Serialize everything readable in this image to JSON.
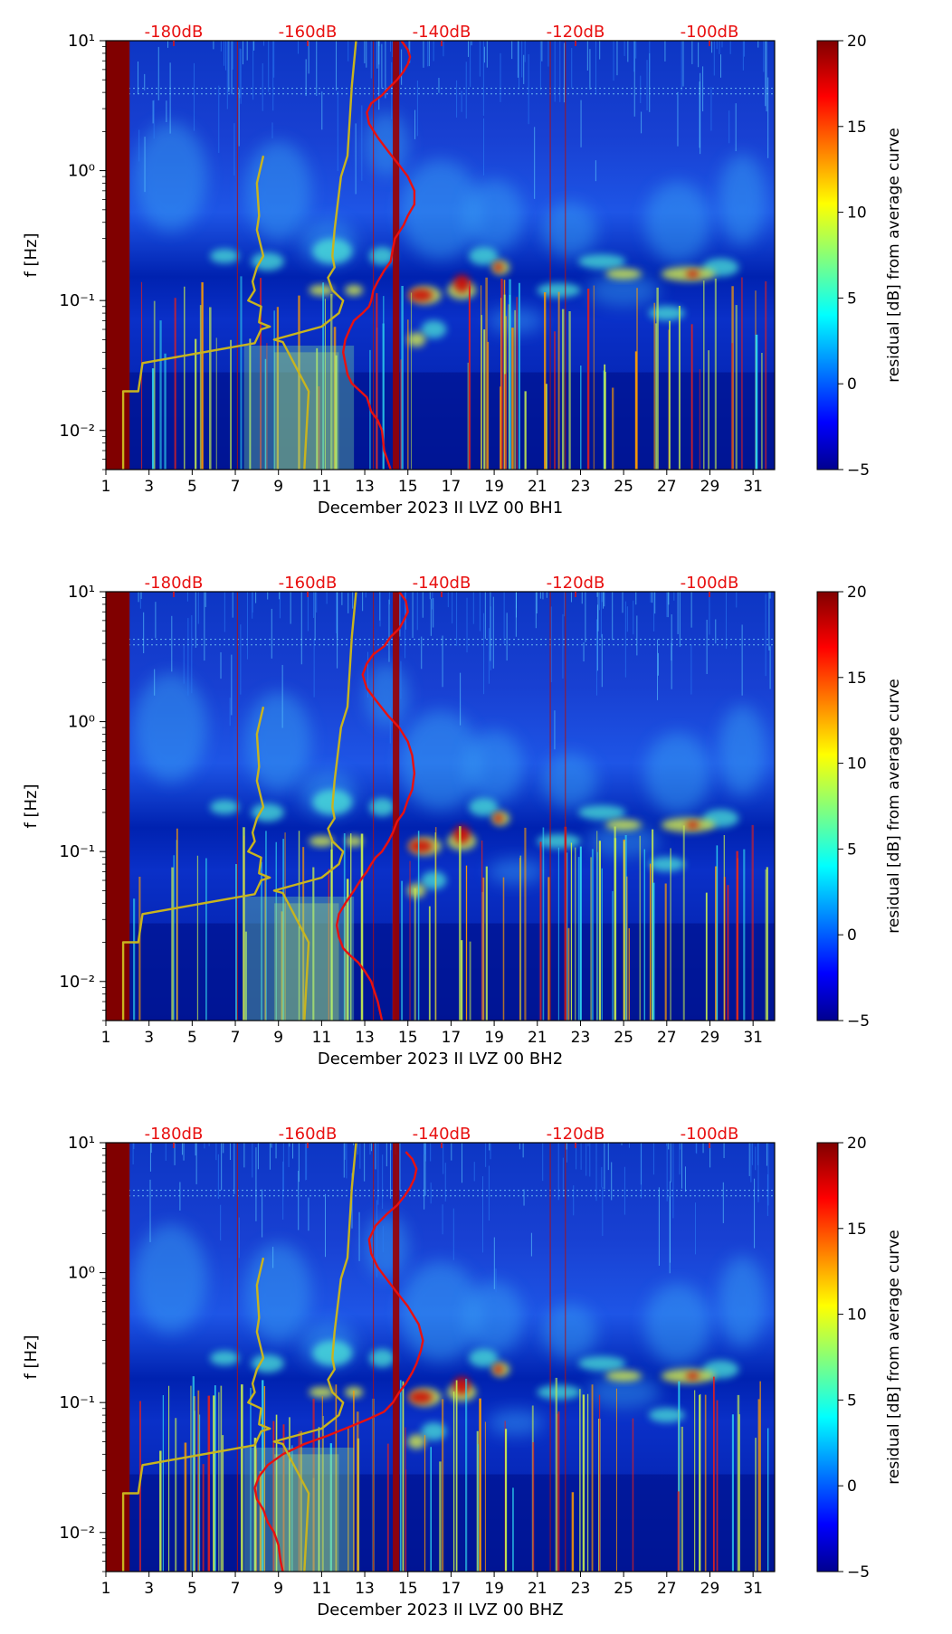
{
  "chart_data": [
    {
      "type": "heatmap",
      "title": "",
      "xlabel": "December 2023 II LVZ 00 BH1",
      "ylabel": "f [Hz]",
      "xticks": [
        "1",
        "3",
        "5",
        "7",
        "9",
        "11",
        "13",
        "15",
        "17",
        "19",
        "21",
        "23",
        "25",
        "27",
        "29",
        "31"
      ],
      "xlim": [
        1,
        32
      ],
      "ylim": [
        0.005,
        10
      ],
      "yscale": "log",
      "yticks": [
        "10⁻²",
        "10⁻¹",
        "10⁰",
        "10¹"
      ],
      "top_labels": [
        "-180dB",
        "-160dB",
        "-140dB",
        "-120dB",
        "-100dB"
      ],
      "colorbar": {
        "label": "residual [dB] from average curve",
        "min": -5,
        "max": 20,
        "ticks": [
          "−5",
          "0",
          "5",
          "10",
          "15",
          "20"
        ]
      },
      "series": [
        {
          "name": "noise model (yellow)",
          "x": [
            1.8,
            1.8,
            2.5,
            2.7,
            7.9,
            8.2,
            8.6,
            8.1,
            8.2,
            7.6,
            7.9,
            7.8,
            8.0,
            8.3,
            8.0,
            8.1,
            8.0,
            8.3
          ],
          "y": [
            0.005,
            0.02,
            0.02,
            0.033,
            0.047,
            0.06,
            0.063,
            0.068,
            0.09,
            0.1,
            0.12,
            0.14,
            0.18,
            0.22,
            0.35,
            0.45,
            0.8,
            1.3
          ]
        },
        {
          "name": "average PSD (red)",
          "x": [
            14.2,
            13.9,
            13.8,
            13.6,
            13.3,
            13.2,
            13.1,
            12.8,
            12.4,
            12.2,
            12.1,
            12.0,
            12.1,
            12.3,
            12.5,
            12.9,
            13.2,
            13.3,
            13.4,
            13.6,
            13.9,
            14.2,
            14.3,
            14.4,
            14.8,
            15.0,
            15.3,
            15.3,
            15.0,
            14.6,
            14.1,
            13.6,
            13.2,
            13.1,
            13.3,
            13.8,
            14.1,
            14.5,
            14.8,
            15.0,
            15.1,
            15.0,
            14.7
          ],
          "y": [
            0.005,
            0.007,
            0.01,
            0.012,
            0.014,
            0.016,
            0.018,
            0.02,
            0.023,
            0.027,
            0.033,
            0.04,
            0.05,
            0.06,
            0.07,
            0.08,
            0.09,
            0.1,
            0.12,
            0.14,
            0.17,
            0.2,
            0.25,
            0.3,
            0.38,
            0.45,
            0.55,
            0.7,
            0.9,
            1.1,
            1.4,
            1.8,
            2.3,
            2.8,
            3.3,
            3.8,
            4.3,
            5.0,
            5.8,
            6.6,
            7.5,
            8.5,
            10
          ]
        },
        {
          "name": "noise model high (yellow)",
          "x": [
            10.2,
            10.4,
            9.2,
            8.8,
            11.0,
            11.8,
            12.0,
            11.5,
            11.3,
            11.6,
            11.5,
            11.6,
            11.9,
            12.2,
            12.4,
            12.6
          ],
          "y": [
            0.005,
            0.02,
            0.048,
            0.05,
            0.063,
            0.08,
            0.1,
            0.12,
            0.15,
            0.18,
            0.22,
            0.35,
            0.9,
            1.3,
            4.5,
            10
          ]
        }
      ]
    },
    {
      "type": "heatmap",
      "title": "",
      "xlabel": "December 2023 II LVZ 00 BH2",
      "ylabel": "f [Hz]",
      "xticks": [
        "1",
        "3",
        "5",
        "7",
        "9",
        "11",
        "13",
        "15",
        "17",
        "19",
        "21",
        "23",
        "25",
        "27",
        "29",
        "31"
      ],
      "xlim": [
        1,
        32
      ],
      "ylim": [
        0.005,
        10
      ],
      "yscale": "log",
      "yticks": [
        "10⁻²",
        "10⁻¹",
        "10⁰",
        "10¹"
      ],
      "top_labels": [
        "-180dB",
        "-160dB",
        "-140dB",
        "-120dB",
        "-100dB"
      ],
      "colorbar": {
        "label": "residual [dB] from average curve",
        "min": -5,
        "max": 20,
        "ticks": [
          "−5",
          "0",
          "5",
          "10",
          "15",
          "20"
        ]
      },
      "series": [
        {
          "name": "noise model (yellow)",
          "x": [
            1.8,
            1.8,
            2.5,
            2.7,
            7.9,
            8.2,
            8.6,
            8.1,
            8.2,
            7.6,
            7.9,
            7.8,
            8.0,
            8.3,
            8.0,
            8.1,
            8.0,
            8.3
          ],
          "y": [
            0.005,
            0.02,
            0.02,
            0.033,
            0.047,
            0.06,
            0.063,
            0.068,
            0.09,
            0.1,
            0.12,
            0.14,
            0.18,
            0.22,
            0.35,
            0.45,
            0.8,
            1.3
          ]
        },
        {
          "name": "average PSD (red)",
          "x": [
            13.8,
            13.6,
            13.3,
            13.0,
            12.7,
            12.3,
            12.0,
            11.8,
            11.7,
            11.8,
            12.1,
            12.5,
            12.8,
            13.1,
            13.3,
            13.5,
            13.8,
            14.1,
            14.3,
            14.5,
            14.8,
            15.0,
            15.2,
            15.3,
            15.2,
            15.0,
            14.6,
            14.1,
            13.6,
            13.1,
            12.9,
            13.1,
            13.4,
            13.9,
            14.2,
            14.6,
            14.8,
            15.0,
            14.9,
            14.6
          ],
          "y": [
            0.005,
            0.007,
            0.01,
            0.012,
            0.014,
            0.016,
            0.018,
            0.022,
            0.027,
            0.033,
            0.04,
            0.05,
            0.06,
            0.07,
            0.08,
            0.09,
            0.1,
            0.12,
            0.14,
            0.17,
            0.2,
            0.25,
            0.3,
            0.4,
            0.55,
            0.7,
            0.9,
            1.1,
            1.4,
            1.8,
            2.3,
            2.8,
            3.3,
            3.8,
            4.5,
            5.2,
            6.0,
            7.0,
            8.5,
            10
          ]
        },
        {
          "name": "noise model high (yellow)",
          "x": [
            10.2,
            10.4,
            9.2,
            8.8,
            11.0,
            11.8,
            12.0,
            11.5,
            11.3,
            11.6,
            11.5,
            11.6,
            11.9,
            12.2,
            12.4,
            12.6
          ],
          "y": [
            0.005,
            0.02,
            0.048,
            0.05,
            0.063,
            0.08,
            0.1,
            0.12,
            0.15,
            0.18,
            0.22,
            0.35,
            0.9,
            1.3,
            4.5,
            10
          ]
        }
      ]
    },
    {
      "type": "heatmap",
      "title": "",
      "xlabel": "December 2023 II LVZ 00 BHZ",
      "ylabel": "f [Hz]",
      "xticks": [
        "1",
        "3",
        "5",
        "7",
        "9",
        "11",
        "13",
        "15",
        "17",
        "19",
        "21",
        "23",
        "25",
        "27",
        "29",
        "31"
      ],
      "xlim": [
        1,
        32
      ],
      "ylim": [
        0.005,
        10
      ],
      "yscale": "log",
      "yticks": [
        "10⁻²",
        "10⁻¹",
        "10⁰",
        "10¹"
      ],
      "top_labels": [
        "-180dB",
        "-160dB",
        "-140dB",
        "-120dB",
        "-100dB"
      ],
      "colorbar": {
        "label": "residual [dB] from average curve",
        "min": -5,
        "max": 20,
        "ticks": [
          "−5",
          "0",
          "5",
          "10",
          "15",
          "20"
        ]
      },
      "series": [
        {
          "name": "noise model (yellow)",
          "x": [
            1.8,
            1.8,
            2.5,
            2.7,
            7.9,
            8.2,
            8.6,
            8.1,
            8.2,
            7.6,
            7.9,
            7.8,
            8.0,
            8.3,
            8.0,
            8.1,
            8.0,
            8.3
          ],
          "y": [
            0.005,
            0.02,
            0.02,
            0.033,
            0.047,
            0.06,
            0.063,
            0.068,
            0.09,
            0.1,
            0.12,
            0.14,
            0.18,
            0.22,
            0.35,
            0.45,
            0.8,
            1.3
          ]
        },
        {
          "name": "average PSD (red)",
          "x": [
            9.2,
            9.1,
            9.0,
            8.8,
            8.5,
            8.3,
            8.0,
            7.9,
            8.1,
            8.5,
            9.2,
            10.2,
            11.2,
            12.3,
            13.2,
            13.9,
            14.3,
            14.6,
            14.9,
            15.2,
            15.4,
            15.6,
            15.7,
            15.5,
            15.0,
            14.5,
            14.0,
            13.6,
            13.3,
            13.2,
            13.5,
            14.0,
            14.5,
            14.8,
            15.1,
            15.3,
            15.4,
            15.2,
            14.9
          ],
          "y": [
            0.005,
            0.006,
            0.008,
            0.01,
            0.012,
            0.015,
            0.018,
            0.022,
            0.027,
            0.033,
            0.04,
            0.048,
            0.055,
            0.065,
            0.075,
            0.085,
            0.1,
            0.12,
            0.14,
            0.17,
            0.2,
            0.25,
            0.3,
            0.4,
            0.55,
            0.7,
            0.9,
            1.1,
            1.4,
            1.8,
            2.3,
            2.8,
            3.3,
            3.8,
            4.5,
            5.3,
            6.3,
            7.5,
            8.5
          ]
        },
        {
          "name": "noise model high (yellow)",
          "x": [
            10.2,
            10.4,
            9.2,
            8.8,
            11.0,
            11.8,
            12.0,
            11.5,
            11.3,
            11.6,
            11.5,
            11.6,
            11.9,
            12.2,
            12.4,
            12.6
          ],
          "y": [
            0.005,
            0.02,
            0.048,
            0.05,
            0.063,
            0.08,
            0.1,
            0.12,
            0.15,
            0.18,
            0.22,
            0.35,
            0.9,
            1.3,
            4.5,
            10
          ]
        }
      ]
    }
  ]
}
